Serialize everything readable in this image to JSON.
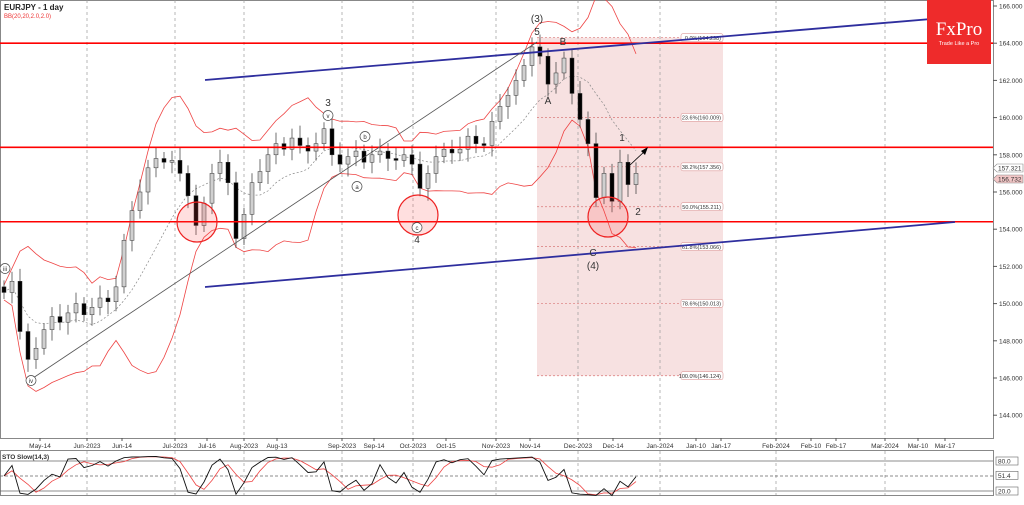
{
  "header": {
    "symbol_title": "EURJPY - 1 day",
    "indicator": "BB(20,20,2.0,2.0)"
  },
  "logo": {
    "brand": "FxPro",
    "tagline": "Trade Like a Pro"
  },
  "colors": {
    "support_resistance": "#ff0000",
    "channel": "#2e2e9e",
    "bollinger": "#ee4444",
    "fib_zone": "#f7e1e1",
    "logo_bg": "#ee2b2b",
    "bull_candle": "#d0d0d0",
    "bear_candle": "#000000"
  },
  "chart_data": {
    "type": "candlestick",
    "title": "EURJPY - 1 day",
    "ylim": [
      143,
      166.5
    ],
    "y_ticks": [
      "166.000",
      "164.000",
      "162.000",
      "160.000",
      "158.000",
      "156.000",
      "154.000",
      "152.000",
      "150.000",
      "148.000",
      "146.000",
      "144.000"
    ],
    "x_ticks": [
      "May-14",
      "Jun-2023",
      "Jun-14",
      "Jul-2023",
      "Jul-16",
      "Aug-2023",
      "Aug-13",
      "Sep-2023",
      "Sep-14",
      "Oct-2023",
      "Oct-15",
      "Nov-2023",
      "Nov-14",
      "Dec-2023",
      "Dec-14",
      "Jan-2024",
      "Jan-10",
      "Jan-17",
      "Feb-2024",
      "Feb-10",
      "Feb-17",
      "Mar-2024",
      "Mar-10",
      "Mar-17"
    ],
    "closes": [
      150.6,
      151.2,
      148.5,
      147.0,
      147.6,
      148.6,
      149.3,
      149.0,
      149.5,
      150.0,
      149.4,
      149.8,
      150.3,
      150.1,
      150.9,
      153.4,
      155.0,
      156.0,
      157.3,
      157.8,
      157.6,
      157.7,
      157.0,
      155.8,
      154.2,
      155.4,
      157.0,
      157.6,
      156.5,
      153.5,
      154.8,
      156.5,
      157.1,
      158.0,
      158.6,
      158.3,
      158.9,
      158.5,
      158.2,
      158.6,
      159.4,
      158.0,
      157.5,
      157.9,
      158.2,
      157.6,
      158.0,
      158.2,
      157.8,
      157.7,
      158.0,
      157.5,
      156.2,
      157.0,
      157.9,
      158.3,
      158.1,
      158.3,
      159.0,
      158.6,
      158.5,
      159.8,
      160.6,
      161.2,
      162.0,
      162.8,
      163.8,
      163.3,
      161.8,
      162.4,
      163.2,
      161.3,
      159.9,
      158.6,
      155.7,
      157.0,
      155.5,
      157.6,
      156.4,
      157.0
    ],
    "horizontal_levels": [
      164.0,
      158.4,
      154.4
    ],
    "price_tags": [
      "157.321",
      "156.732"
    ],
    "fibonacci": [
      {
        "label": "0.0%(164.298)",
        "price": 164.298
      },
      {
        "label": "23.6%(160.009)",
        "price": 160.009
      },
      {
        "label": "38.2%(157.356)",
        "price": 157.356
      },
      {
        "label": "50.0%(155.211)",
        "price": 155.211
      },
      {
        "label": "61.8%(153.066)",
        "price": 153.066
      },
      {
        "label": "78.6%(150.013)",
        "price": 150.013
      },
      {
        "label": "100.0%(146.124)",
        "price": 146.124
      }
    ],
    "wave_labels": [
      "(3)",
      "5",
      "B",
      "A",
      "3",
      "v",
      "b",
      "a",
      "c",
      "4",
      "C",
      "(4)",
      "1",
      "2",
      "iii",
      "iv"
    ],
    "stochastic": {
      "title": "STO Slow(14,3)",
      "levels": [
        "80.0",
        "51.4",
        "20.0"
      ]
    }
  }
}
